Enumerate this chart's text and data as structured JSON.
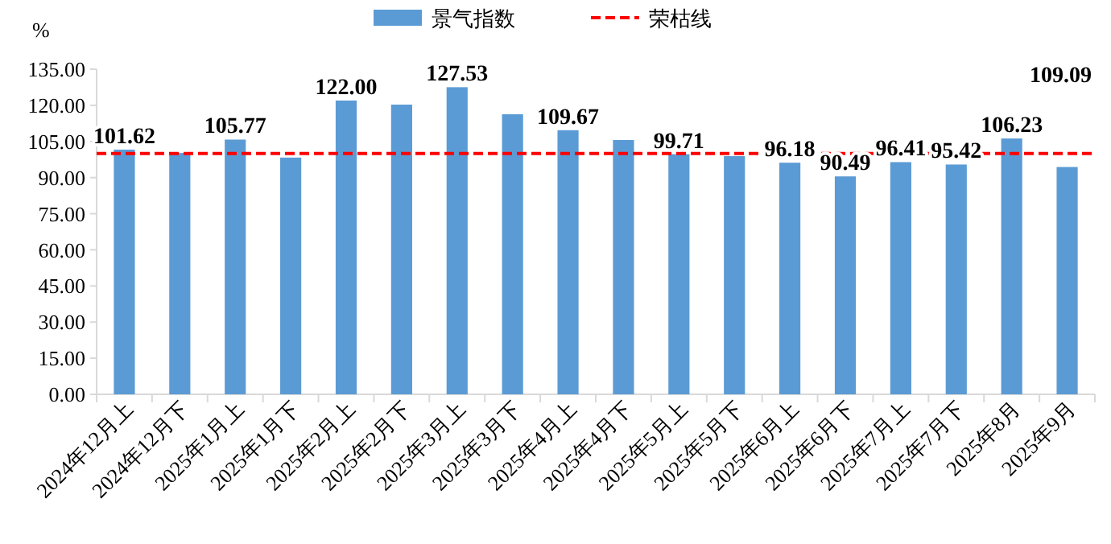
{
  "chart_data": {
    "type": "bar",
    "ylabel": "%",
    "categories": [
      "2024年12月上",
      "2024年12月下",
      "2025年1月上",
      "2025年1月下",
      "2025年2月上",
      "2025年2月下",
      "2025年3月上",
      "2025年3月下",
      "2025年4月上",
      "2025年4月下",
      "2025年5月上",
      "2025年5月下",
      "2025年6月上",
      "2025年6月下",
      "2025年7月上",
      "2025年7月下",
      "2025年8月",
      "2025年9月"
    ],
    "series": [
      {
        "name": "景气指数",
        "color": "#5b9bd5",
        "values": [
          101.62,
          100.2,
          105.77,
          98.3,
          122.0,
          120.3,
          127.53,
          116.3,
          109.67,
          105.6,
          99.71,
          98.9,
          96.18,
          90.49,
          96.41,
          95.42,
          106.23,
          94.4
        ],
        "value_labels": [
          "101.62",
          null,
          "105.77",
          null,
          "122.00",
          null,
          "127.53",
          null,
          "109.67",
          null,
          "99.71",
          null,
          "96.18",
          "90.49",
          "96.41",
          "95.42",
          "106.23",
          null
        ]
      }
    ],
    "ylim": [
      0,
      135
    ],
    "yticks": [
      {
        "value": 0,
        "label": "0.00"
      },
      {
        "value": 15,
        "label": "15.00"
      },
      {
        "value": 30,
        "label": "30.00"
      },
      {
        "value": 45,
        "label": "45.00"
      },
      {
        "value": 60,
        "label": "60.00"
      },
      {
        "value": 75,
        "label": "75.00"
      },
      {
        "value": 90,
        "label": "90.00"
      },
      {
        "value": 105,
        "label": "105.00"
      },
      {
        "value": 120,
        "label": "120.00"
      },
      {
        "value": 135,
        "label": "135.00"
      }
    ],
    "ref_lines": [
      {
        "axis": "y",
        "value": 100,
        "label": "荣枯线",
        "color": "#ff0000",
        "line_style": "dashed"
      }
    ],
    "annotations": [
      "109.09"
    ],
    "legend": "top",
    "grid": false
  }
}
